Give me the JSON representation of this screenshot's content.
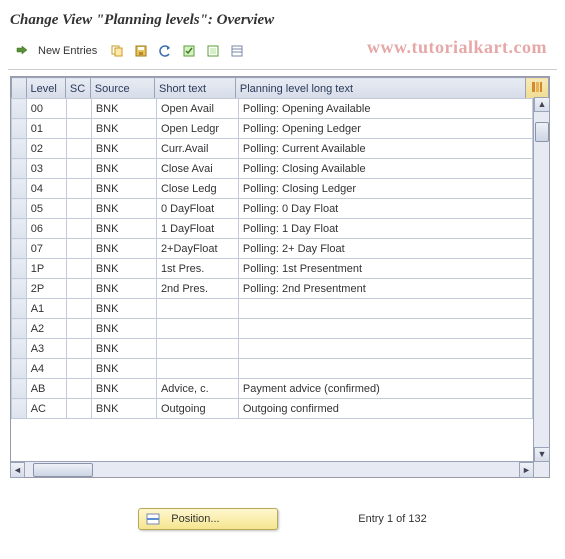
{
  "title": "Change View \"Planning levels\": Overview",
  "watermark": "www.tutorialkart.com",
  "toolbar": {
    "new_entries": "New Entries"
  },
  "columns": {
    "level": "Level",
    "sc": "SC",
    "source": "Source",
    "short": "Short text",
    "long": "Planning level long text"
  },
  "rows": [
    {
      "level": "00",
      "sc": "",
      "source": "BNK",
      "short": "Open Avail",
      "long": "Polling: Opening Available"
    },
    {
      "level": "01",
      "sc": "",
      "source": "BNK",
      "short": "Open Ledgr",
      "long": "Polling: Opening Ledger"
    },
    {
      "level": "02",
      "sc": "",
      "source": "BNK",
      "short": "Curr.Avail",
      "long": "Polling: Current Available"
    },
    {
      "level": "03",
      "sc": "",
      "source": "BNK",
      "short": "Close Avai",
      "long": "Polling: Closing Available"
    },
    {
      "level": "04",
      "sc": "",
      "source": "BNK",
      "short": "Close Ledg",
      "long": "Polling: Closing Ledger"
    },
    {
      "level": "05",
      "sc": "",
      "source": "BNK",
      "short": "0 DayFloat",
      "long": "Polling: 0 Day Float"
    },
    {
      "level": "06",
      "sc": "",
      "source": "BNK",
      "short": "1 DayFloat",
      "long": "Polling: 1 Day Float"
    },
    {
      "level": "07",
      "sc": "",
      "source": "BNK",
      "short": "2+DayFloat",
      "long": "Polling: 2+ Day Float"
    },
    {
      "level": "1P",
      "sc": "",
      "source": "BNK",
      "short": "1st Pres.",
      "long": "Polling: 1st Presentment"
    },
    {
      "level": "2P",
      "sc": "",
      "source": "BNK",
      "short": "2nd Pres.",
      "long": "Polling: 2nd Presentment"
    },
    {
      "level": "A1",
      "sc": "",
      "source": "BNK",
      "short": "",
      "long": ""
    },
    {
      "level": "A2",
      "sc": "",
      "source": "BNK",
      "short": "",
      "long": ""
    },
    {
      "level": "A3",
      "sc": "",
      "source": "BNK",
      "short": "",
      "long": ""
    },
    {
      "level": "A4",
      "sc": "",
      "source": "BNK",
      "short": "",
      "long": ""
    },
    {
      "level": "AB",
      "sc": "",
      "source": "BNK",
      "short": "Advice, c.",
      "long": "Payment advice (confirmed)"
    },
    {
      "level": "AC",
      "sc": "",
      "source": "BNK",
      "short": "Outgoing",
      "long": "Outgoing confirmed"
    }
  ],
  "footer": {
    "position_label": "Position...",
    "entry_text": "Entry 1 of 132"
  },
  "colors": {
    "header_bg_top": "#e8ecf3",
    "header_bg_bot": "#d5dbe8",
    "border": "#9aa3b8",
    "accent_yellow": "#f5e58f"
  }
}
